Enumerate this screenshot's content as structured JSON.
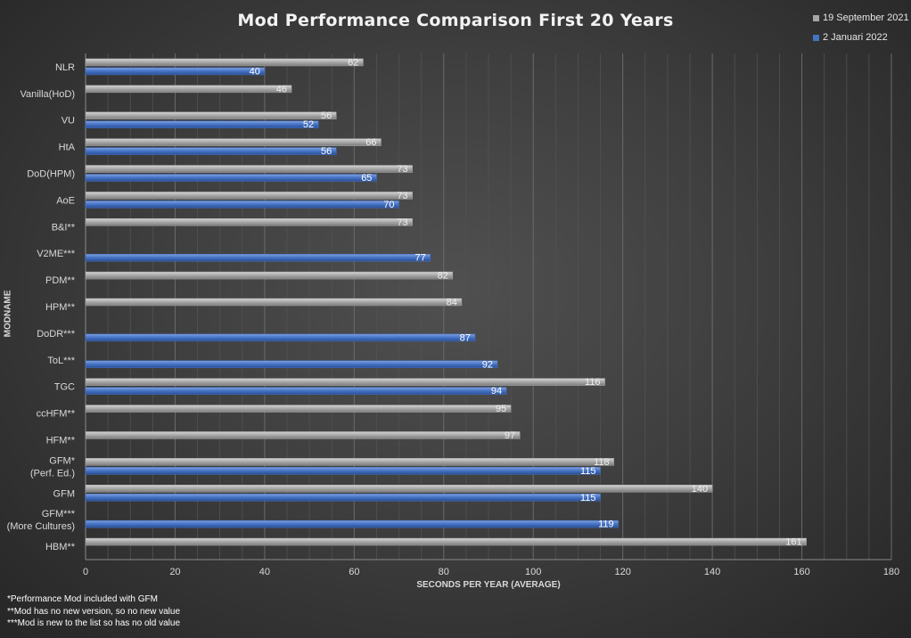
{
  "chart_data": {
    "type": "bar",
    "orientation": "horizontal",
    "title": "Mod Performance Comparison First 20 Years",
    "xlabel": "SECONDS PER YEAR (AVERAGE)",
    "ylabel": "MODNAME",
    "xlim": [
      0,
      180
    ],
    "xticks": [
      "0",
      "20",
      "40",
      "60",
      "80",
      "100",
      "120",
      "140",
      "160",
      "180"
    ],
    "grid": true,
    "legend_position": "top-right",
    "categories": [
      "NLR",
      "Vanilla(HoD)",
      "VU",
      "HtA",
      "DoD(HPM)",
      "AoE",
      "B&I**",
      "V2ME***",
      "PDM**",
      "HPM**",
      "DoDR***",
      "ToL***",
      "TGC",
      "ccHFM**",
      "HFM**",
      "GFM*\n(Perf. Ed.)",
      "GFM",
      "GFM***\n(More Cultures)",
      "HBM**"
    ],
    "series": [
      {
        "name": "19 September 2021",
        "color": "#a6a6a6",
        "values": [
          62,
          46,
          56,
          66,
          73,
          73,
          73,
          null,
          82,
          84,
          null,
          null,
          116,
          95,
          97,
          118,
          140,
          null,
          161
        ]
      },
      {
        "name": "2 Januari 2022",
        "color": "#4472c4",
        "values": [
          40,
          null,
          52,
          56,
          65,
          70,
          null,
          77,
          null,
          null,
          87,
          92,
          94,
          null,
          null,
          115,
          115,
          119,
          null
        ]
      }
    ]
  },
  "footnotes": [
    "*Performance Mod included with GFM",
    "**Mod has no new version, so no new value",
    "***Mod is new to the list so has no old value"
  ]
}
